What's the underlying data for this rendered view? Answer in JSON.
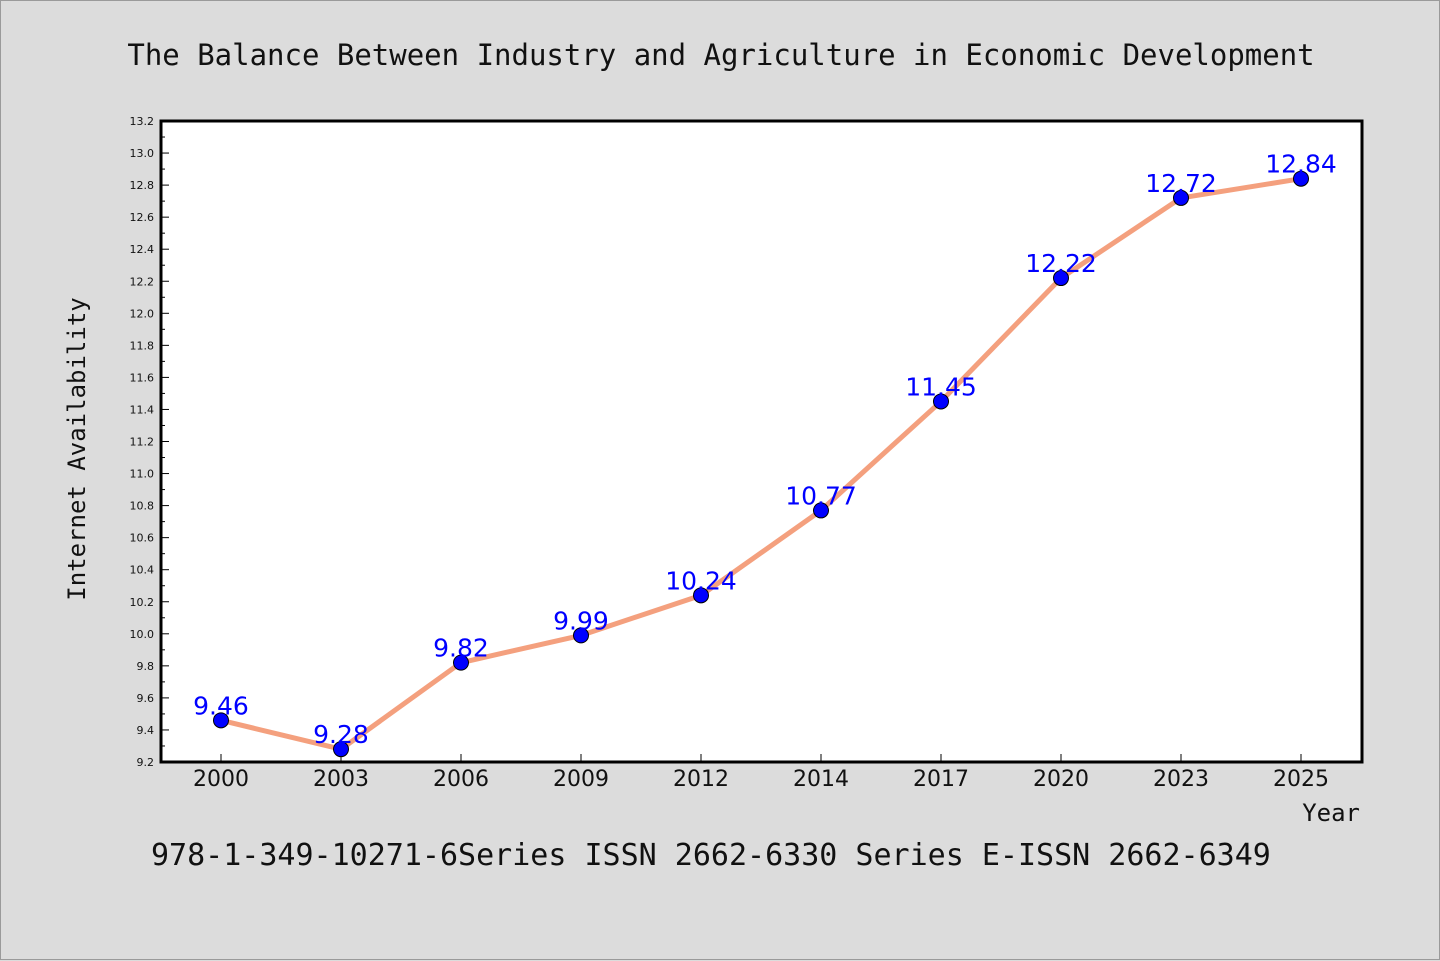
{
  "chart_data": {
    "type": "line",
    "title": "The Balance Between Industry and Agriculture in Economic Development",
    "xlabel": "Year",
    "ylabel": "Internet Availability",
    "categories": [
      "2000",
      "2003",
      "2006",
      "2009",
      "2012",
      "2014",
      "2017",
      "2020",
      "2023",
      "2025"
    ],
    "series": [
      {
        "values": [
          9.46,
          9.28,
          9.82,
          9.99,
          10.24,
          10.77,
          11.45,
          12.22,
          12.72,
          12.84
        ]
      }
    ],
    "data_labels": [
      "9.46",
      "9.28",
      "9.82",
      "9.99",
      "10.24",
      "10.77",
      "11.45",
      "12.22",
      "12.72",
      "12.84"
    ],
    "ylim": [
      9.2,
      13.2
    ],
    "yticks": [
      "9.2",
      "9.4",
      "9.6",
      "9.8",
      "10.0",
      "10.2",
      "10.4",
      "10.6",
      "10.8",
      "11.0",
      "11.2",
      "11.4",
      "11.6",
      "11.8",
      "12.0",
      "12.2",
      "12.4",
      "12.6",
      "12.8",
      "13.0",
      "13.2"
    ],
    "grid": false,
    "line_color": "#f4a07e",
    "marker_color": "#0000ff",
    "label_color": "#0000ff",
    "background": "#dcdcdc",
    "plot_background": "#ffffff"
  },
  "footer": {
    "text": "978-1-349-10271-6Series ISSN 2662-6330 Series E-ISSN 2662-6349"
  }
}
